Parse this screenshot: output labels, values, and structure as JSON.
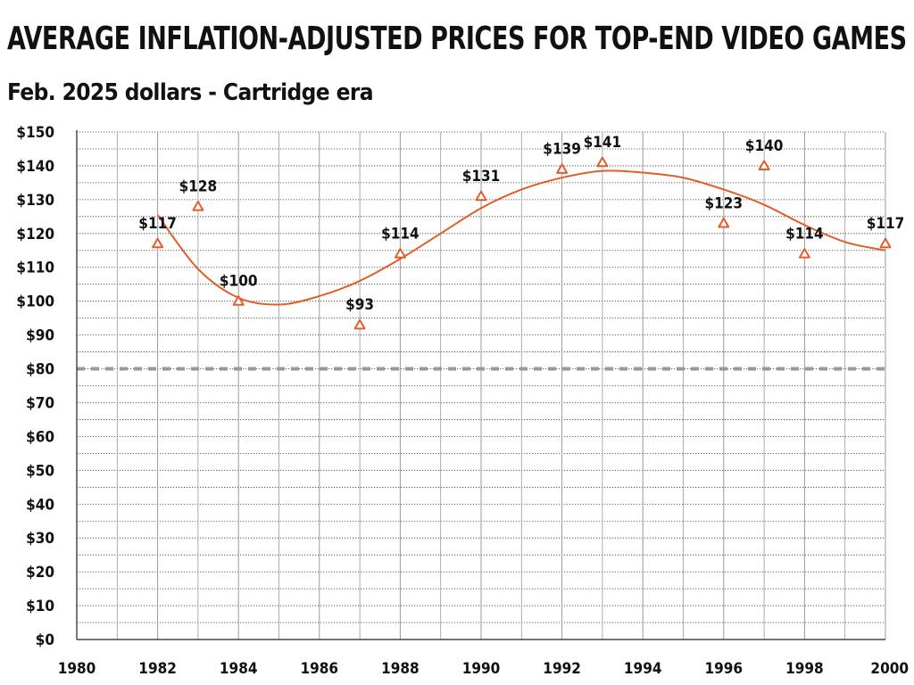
{
  "chart_data": {
    "type": "scatter",
    "title": "AVERAGE INFLATION-ADJUSTED PRICES FOR TOP-END VIDEO GAMES",
    "subtitle": "Feb. 2025 dollars - Cartridge era",
    "xlabel": "",
    "ylabel": "",
    "xlim": [
      1980,
      2000
    ],
    "ylim": [
      0,
      150
    ],
    "x_ticks": [
      "1980",
      "1982",
      "1984",
      "1986",
      "1988",
      "1990",
      "1992",
      "1994",
      "1996",
      "1998",
      "2000"
    ],
    "y_ticks": [
      "$0",
      "$10",
      "$20",
      "$30",
      "$40",
      "$50",
      "$60",
      "$70",
      "$80",
      "$90",
      "$100",
      "$110",
      "$120",
      "$130",
      "$140",
      "$150"
    ],
    "grid": true,
    "series": [
      {
        "marker": "triangle-open",
        "color": "#e35d2a",
        "x": [
          1982,
          1983,
          1984,
          1987,
          1988,
          1990,
          1992,
          1993,
          1996,
          1997,
          1998,
          2000
        ],
        "y": [
          117,
          128,
          100,
          93,
          114,
          131,
          139,
          141,
          123,
          140,
          114,
          117
        ],
        "labels": [
          "$117",
          "$128",
          "$100",
          "$93",
          "$114",
          "$131",
          "$139",
          "$141",
          "$123",
          "$140",
          "$114",
          "$117"
        ]
      }
    ],
    "trendline": {
      "type": "polynomial",
      "color": "#e35d2a",
      "x_range": [
        1982,
        2000
      ],
      "points": [
        [
          1982,
          125.5
        ],
        [
          1983,
          109.5
        ],
        [
          1984,
          101
        ],
        [
          1985,
          99
        ],
        [
          1986,
          101.5
        ],
        [
          1987,
          106
        ],
        [
          1988,
          112.5
        ],
        [
          1989,
          120
        ],
        [
          1990,
          127.5
        ],
        [
          1991,
          133
        ],
        [
          1992,
          136.5
        ],
        [
          1993,
          138.5
        ],
        [
          1994,
          138
        ],
        [
          1995,
          136.5
        ],
        [
          1996,
          133
        ],
        [
          1997,
          128.5
        ],
        [
          1998,
          122.5
        ],
        [
          1999,
          117.5
        ],
        [
          2000,
          115
        ]
      ]
    },
    "reference_line": {
      "value": 80,
      "style": "dashed",
      "color": "#999999"
    },
    "gridline_minor_step": 5
  }
}
